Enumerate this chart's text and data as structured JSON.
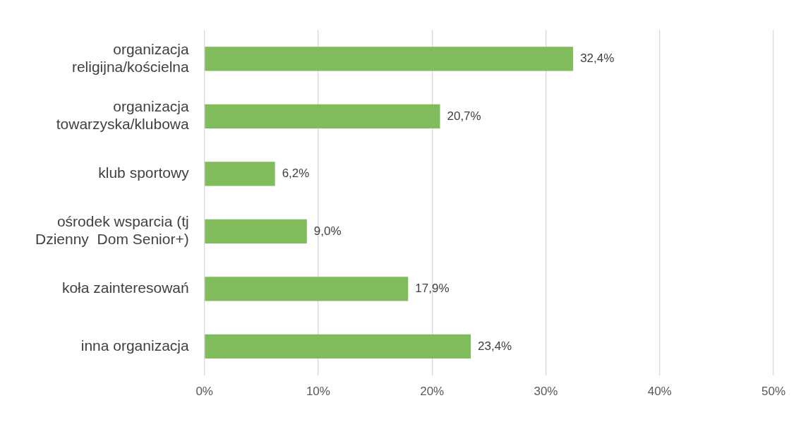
{
  "chart_data": {
    "type": "bar",
    "orientation": "horizontal",
    "categories": [
      "organizacja\nreligijna/kościelna",
      "organizacja\ntowarzyska/klubowa",
      "klub sportowy",
      "ośrodek wsparcia (tj\nDzienny  Dom Senior+)",
      "koła zainteresowań",
      "inna organizacja"
    ],
    "values": [
      32.4,
      20.7,
      6.2,
      9.0,
      17.9,
      23.4
    ],
    "value_labels": [
      "32,4%",
      "20,7%",
      "6,2%",
      "9,0%",
      "17,9%",
      "23,4%"
    ],
    "color": "#80bc5c",
    "xlim": [
      0,
      50
    ],
    "xticks": [
      {
        "value": 0,
        "label": "0%"
      },
      {
        "value": 10,
        "label": "10%"
      },
      {
        "value": 20,
        "label": "20%"
      },
      {
        "value": 30,
        "label": "30%"
      },
      {
        "value": 40,
        "label": "40%"
      },
      {
        "value": 50,
        "label": "50%"
      }
    ],
    "grid": "x",
    "legend": false
  }
}
